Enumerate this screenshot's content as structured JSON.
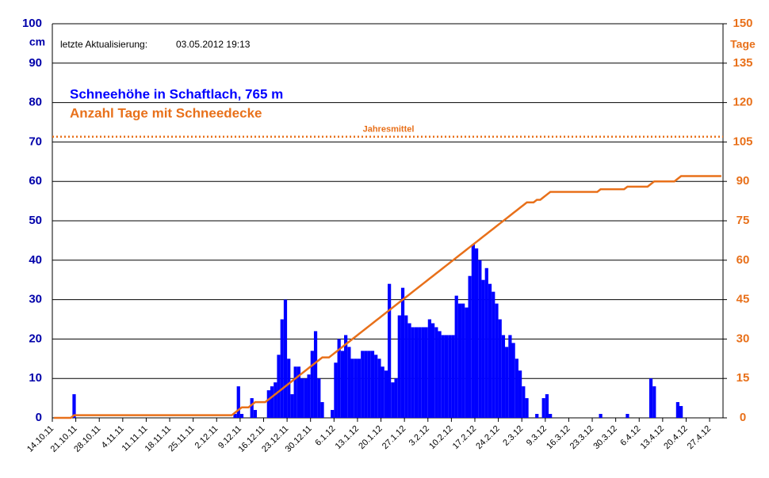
{
  "chart_data": {
    "type": "bar",
    "update_label": "letzte Aktualisierung:",
    "update_time": "03.05.2012 19:13",
    "y_label": "cm",
    "y2_label": "Tage",
    "ylim": [
      0,
      100
    ],
    "yticks": [
      0,
      10,
      20,
      30,
      40,
      50,
      60,
      70,
      80,
      90,
      100
    ],
    "y2lim": [
      0,
      150
    ],
    "y2ticks": [
      0,
      15,
      30,
      45,
      60,
      75,
      90,
      105,
      120,
      135,
      150
    ],
    "grid": true,
    "categories": [
      "14.10.11",
      null,
      null,
      null,
      null,
      null,
      null,
      "21.10.11",
      null,
      null,
      null,
      null,
      null,
      null,
      "28.10.11",
      null,
      null,
      null,
      null,
      null,
      null,
      "4.11.11",
      null,
      null,
      null,
      null,
      null,
      null,
      "11.11.11",
      null,
      null,
      null,
      null,
      null,
      null,
      "18.11.11",
      null,
      null,
      null,
      null,
      null,
      null,
      "25.11.11",
      null,
      null,
      null,
      null,
      null,
      null,
      "2.12.11",
      null,
      null,
      null,
      null,
      null,
      null,
      "9.12.11",
      null,
      null,
      null,
      null,
      null,
      null,
      "16.12.11",
      null,
      null,
      null,
      null,
      null,
      null,
      "23.12.11",
      null,
      null,
      null,
      null,
      null,
      null,
      "30.12.11",
      null,
      null,
      null,
      null,
      null,
      null,
      "6.1.12",
      null,
      null,
      null,
      null,
      null,
      null,
      "13.1.12",
      null,
      null,
      null,
      null,
      null,
      null,
      "20.1.12",
      null,
      null,
      null,
      null,
      null,
      null,
      "27.1.12",
      null,
      null,
      null,
      null,
      null,
      null,
      "3.2.12",
      null,
      null,
      null,
      null,
      null,
      null,
      "10.2.12",
      null,
      null,
      null,
      null,
      null,
      null,
      "17.2.12",
      null,
      null,
      null,
      null,
      null,
      null,
      "24.2.12",
      null,
      null,
      null,
      null,
      null,
      null,
      "2.3.12",
      null,
      null,
      null,
      null,
      null,
      null,
      "9.3.12",
      null,
      null,
      null,
      null,
      null,
      null,
      "16.3.12",
      null,
      null,
      null,
      null,
      null,
      null,
      "23.3.12",
      null,
      null,
      null,
      null,
      null,
      null,
      "30.3.12",
      null,
      null,
      null,
      null,
      null,
      null,
      "6.4.12",
      null,
      null,
      null,
      null,
      null,
      null,
      "13.4.12",
      null,
      null,
      null,
      null,
      null,
      null,
      "20.4.12",
      null,
      null,
      null,
      null,
      null,
      null,
      "27.4.12",
      null,
      null,
      null
    ],
    "series": [
      {
        "name": "Schneehöhe in Schaftlach, 765 m",
        "color": "#0000ff",
        "type": "bar",
        "values": [
          0,
          0,
          0,
          0,
          0,
          0,
          6,
          0,
          0,
          0,
          0,
          0,
          0,
          0,
          0,
          0,
          0,
          0,
          0,
          0,
          0,
          0,
          0,
          0,
          0,
          0,
          0,
          0,
          0,
          0,
          0,
          0,
          0,
          0,
          0,
          0,
          0,
          0,
          0,
          0,
          0,
          0,
          0,
          0,
          0,
          0,
          0,
          0,
          0,
          0,
          0,
          0,
          0,
          0,
          1,
          8,
          1,
          0,
          0,
          5,
          2,
          0,
          0,
          0,
          7,
          8,
          9,
          16,
          25,
          30,
          15,
          6,
          13,
          13,
          10,
          10,
          11,
          17,
          22,
          10,
          4,
          0,
          0,
          2,
          14,
          20,
          17,
          21,
          18,
          15,
          15,
          15,
          17,
          17,
          17,
          17,
          16,
          15,
          13,
          12,
          34,
          9,
          10,
          26,
          33,
          26,
          24,
          23,
          23,
          23,
          23,
          23,
          25,
          24,
          23,
          22,
          21,
          21,
          21,
          21,
          31,
          29,
          29,
          28,
          36,
          44,
          43,
          40,
          35,
          38,
          34,
          32,
          29,
          25,
          21,
          18,
          21,
          19,
          15,
          12,
          8,
          5,
          0,
          0,
          1,
          0,
          5,
          6,
          1,
          0,
          0,
          0,
          0,
          0,
          0,
          0,
          0,
          0,
          0,
          0,
          0,
          0,
          0,
          1,
          0,
          0,
          0,
          0,
          0,
          0,
          0,
          1,
          0,
          0,
          0,
          0,
          0,
          0,
          10,
          8,
          0,
          0,
          0,
          0,
          0,
          0,
          4,
          3,
          0,
          0,
          0,
          0,
          0,
          0,
          0,
          0,
          0,
          0,
          0,
          0
        ]
      },
      {
        "name": "Anzahl Tage mit Schneedecke",
        "color": "#e8701a",
        "type": "line",
        "axis": "y2",
        "values": [
          0,
          0,
          0,
          0,
          0,
          0,
          1,
          1,
          1,
          1,
          1,
          1,
          1,
          1,
          1,
          1,
          1,
          1,
          1,
          1,
          1,
          1,
          1,
          1,
          1,
          1,
          1,
          1,
          1,
          1,
          1,
          1,
          1,
          1,
          1,
          1,
          1,
          1,
          1,
          1,
          1,
          1,
          1,
          1,
          1,
          1,
          1,
          1,
          1,
          1,
          1,
          1,
          1,
          1,
          2,
          3,
          4,
          4,
          4,
          5,
          6,
          6,
          6,
          6,
          7,
          8,
          9,
          10,
          11,
          12,
          13,
          14,
          15,
          16,
          17,
          18,
          19,
          20,
          21,
          22,
          23,
          23,
          23,
          24,
          25,
          26,
          27,
          28,
          29,
          30,
          31,
          32,
          33,
          34,
          35,
          36,
          37,
          38,
          39,
          40,
          41,
          42,
          43,
          44,
          45,
          46,
          47,
          48,
          49,
          50,
          51,
          52,
          53,
          54,
          55,
          56,
          57,
          58,
          59,
          60,
          61,
          62,
          63,
          64,
          65,
          66,
          67,
          68,
          69,
          70,
          71,
          72,
          73,
          74,
          75,
          76,
          77,
          78,
          79,
          80,
          81,
          82,
          82,
          82,
          83,
          83,
          84,
          85,
          86,
          86,
          86,
          86,
          86,
          86,
          86,
          86,
          86,
          86,
          86,
          86,
          86,
          86,
          86,
          87,
          87,
          87,
          87,
          87,
          87,
          87,
          87,
          88,
          88,
          88,
          88,
          88,
          88,
          88,
          89,
          90,
          90,
          90,
          90,
          90,
          90,
          90,
          91,
          92,
          92,
          92,
          92,
          92,
          92,
          92,
          92,
          92,
          92,
          92,
          92,
          92
        ]
      }
    ],
    "annotations": [
      {
        "text": "Jahresmittel",
        "value": 107,
        "axis": "y2",
        "color": "#e8701a"
      }
    ]
  }
}
